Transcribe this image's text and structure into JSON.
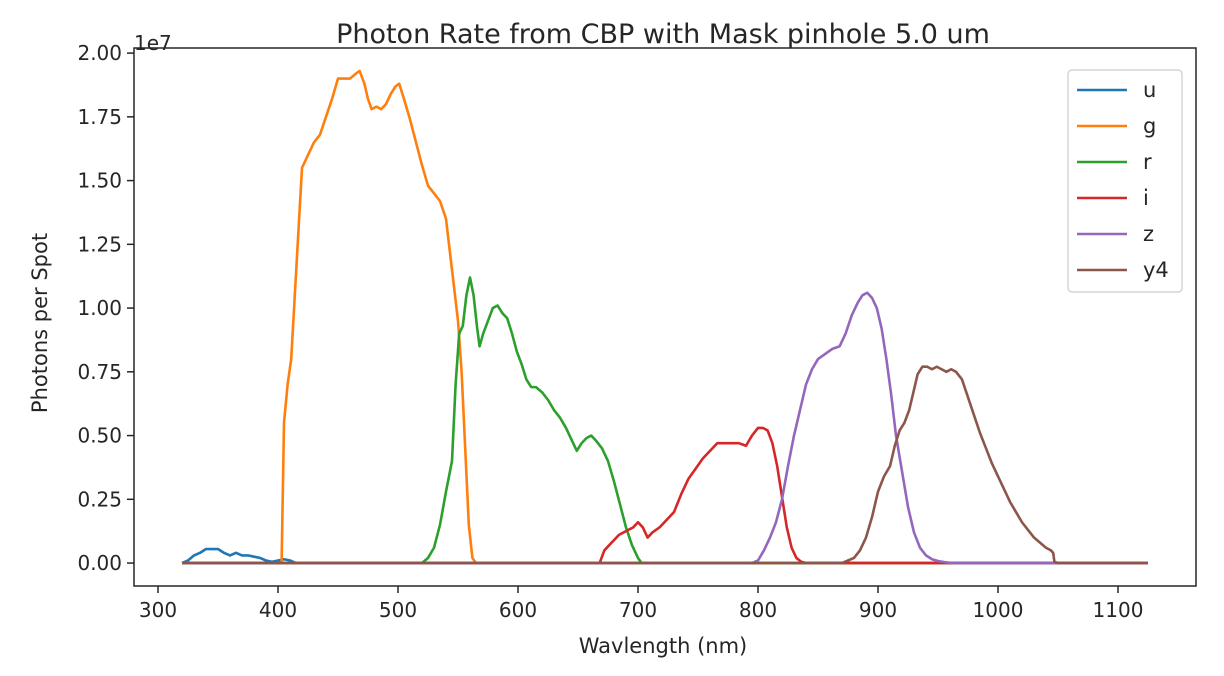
{
  "chart_data": {
    "type": "line",
    "title": "Photon Rate from CBP with Mask pinhole 5.0 um",
    "xlabel": "Wavlength (nm)",
    "ylabel": "Photons per Spot",
    "y_offset_label": "1e7",
    "y_scale": 10000000,
    "xlim": [
      280,
      1165
    ],
    "ylim": [
      -0.09,
      2.02
    ],
    "x_ticks": [
      300,
      400,
      500,
      600,
      700,
      800,
      900,
      1000,
      1100
    ],
    "x_tick_labels": [
      "300",
      "400",
      "500",
      "600",
      "700",
      "800",
      "900",
      "1000",
      "1100"
    ],
    "y_ticks": [
      0.0,
      0.25,
      0.5,
      0.75,
      1.0,
      1.25,
      1.5,
      1.75,
      2.0
    ],
    "y_tick_labels": [
      "0.00",
      "0.25",
      "0.50",
      "0.75",
      "1.00",
      "1.25",
      "1.50",
      "1.75",
      "2.00"
    ],
    "grid": false,
    "legend_position": "upper right",
    "series": [
      {
        "name": "u",
        "color": "#1f77b4",
        "points": [
          [
            320,
            0
          ],
          [
            325,
            0.01
          ],
          [
            330,
            0.03
          ],
          [
            335,
            0.04
          ],
          [
            340,
            0.055
          ],
          [
            345,
            0.055
          ],
          [
            350,
            0.055
          ],
          [
            355,
            0.04
          ],
          [
            360,
            0.03
          ],
          [
            365,
            0.04
          ],
          [
            370,
            0.03
          ],
          [
            375,
            0.03
          ],
          [
            380,
            0.025
          ],
          [
            385,
            0.02
          ],
          [
            390,
            0.01
          ],
          [
            395,
            0.005
          ],
          [
            400,
            0.01
          ],
          [
            405,
            0.015
          ],
          [
            410,
            0.01
          ],
          [
            415,
            0.0
          ],
          [
            1125,
            0
          ]
        ]
      },
      {
        "name": "g",
        "color": "#ff7f0e",
        "points": [
          [
            320,
            0
          ],
          [
            403,
            0
          ],
          [
            405,
            0.55
          ],
          [
            408,
            0.7
          ],
          [
            411,
            0.8
          ],
          [
            414,
            1.05
          ],
          [
            417,
            1.3
          ],
          [
            420,
            1.55
          ],
          [
            425,
            1.6
          ],
          [
            430,
            1.65
          ],
          [
            435,
            1.68
          ],
          [
            440,
            1.75
          ],
          [
            445,
            1.82
          ],
          [
            450,
            1.9
          ],
          [
            455,
            1.9
          ],
          [
            460,
            1.9
          ],
          [
            465,
            1.92
          ],
          [
            468,
            1.93
          ],
          [
            472,
            1.88
          ],
          [
            475,
            1.82
          ],
          [
            478,
            1.78
          ],
          [
            482,
            1.79
          ],
          [
            486,
            1.78
          ],
          [
            490,
            1.8
          ],
          [
            494,
            1.84
          ],
          [
            498,
            1.87
          ],
          [
            501,
            1.88
          ],
          [
            505,
            1.82
          ],
          [
            510,
            1.74
          ],
          [
            515,
            1.65
          ],
          [
            520,
            1.56
          ],
          [
            525,
            1.48
          ],
          [
            530,
            1.45
          ],
          [
            535,
            1.42
          ],
          [
            540,
            1.35
          ],
          [
            545,
            1.15
          ],
          [
            550,
            0.95
          ],
          [
            553,
            0.75
          ],
          [
            556,
            0.45
          ],
          [
            559,
            0.15
          ],
          [
            562,
            0.02
          ],
          [
            565,
            0
          ],
          [
            1125,
            0
          ]
        ]
      },
      {
        "name": "r",
        "color": "#2ca02c",
        "points": [
          [
            320,
            0
          ],
          [
            520,
            0
          ],
          [
            525,
            0.02
          ],
          [
            530,
            0.06
          ],
          [
            535,
            0.15
          ],
          [
            540,
            0.28
          ],
          [
            545,
            0.4
          ],
          [
            548,
            0.7
          ],
          [
            551,
            0.9
          ],
          [
            554,
            0.93
          ],
          [
            557,
            1.05
          ],
          [
            560,
            1.12
          ],
          [
            563,
            1.05
          ],
          [
            566,
            0.92
          ],
          [
            568,
            0.85
          ],
          [
            571,
            0.9
          ],
          [
            575,
            0.95
          ],
          [
            579,
            1.0
          ],
          [
            583,
            1.01
          ],
          [
            587,
            0.98
          ],
          [
            591,
            0.96
          ],
          [
            595,
            0.9
          ],
          [
            599,
            0.83
          ],
          [
            603,
            0.78
          ],
          [
            607,
            0.72
          ],
          [
            611,
            0.69
          ],
          [
            615,
            0.69
          ],
          [
            620,
            0.67
          ],
          [
            625,
            0.64
          ],
          [
            630,
            0.6
          ],
          [
            635,
            0.57
          ],
          [
            640,
            0.53
          ],
          [
            645,
            0.48
          ],
          [
            649,
            0.44
          ],
          [
            653,
            0.47
          ],
          [
            657,
            0.49
          ],
          [
            661,
            0.5
          ],
          [
            665,
            0.48
          ],
          [
            670,
            0.45
          ],
          [
            675,
            0.4
          ],
          [
            680,
            0.32
          ],
          [
            685,
            0.23
          ],
          [
            690,
            0.14
          ],
          [
            695,
            0.07
          ],
          [
            700,
            0.02
          ],
          [
            703,
            0
          ],
          [
            1125,
            0
          ]
        ]
      },
      {
        "name": "i",
        "color": "#d62728",
        "points": [
          [
            320,
            0
          ],
          [
            668,
            0
          ],
          [
            672,
            0.05
          ],
          [
            676,
            0.07
          ],
          [
            680,
            0.09
          ],
          [
            684,
            0.11
          ],
          [
            688,
            0.12
          ],
          [
            692,
            0.13
          ],
          [
            696,
            0.14
          ],
          [
            700,
            0.16
          ],
          [
            704,
            0.14
          ],
          [
            708,
            0.1
          ],
          [
            712,
            0.12
          ],
          [
            718,
            0.14
          ],
          [
            724,
            0.17
          ],
          [
            730,
            0.2
          ],
          [
            736,
            0.27
          ],
          [
            742,
            0.33
          ],
          [
            748,
            0.37
          ],
          [
            754,
            0.41
          ],
          [
            760,
            0.44
          ],
          [
            766,
            0.47
          ],
          [
            772,
            0.47
          ],
          [
            778,
            0.47
          ],
          [
            784,
            0.47
          ],
          [
            790,
            0.46
          ],
          [
            795,
            0.5
          ],
          [
            800,
            0.53
          ],
          [
            804,
            0.53
          ],
          [
            808,
            0.52
          ],
          [
            812,
            0.47
          ],
          [
            816,
            0.38
          ],
          [
            820,
            0.26
          ],
          [
            824,
            0.14
          ],
          [
            828,
            0.06
          ],
          [
            832,
            0.02
          ],
          [
            836,
            0.005
          ],
          [
            840,
            0
          ],
          [
            1125,
            0
          ]
        ]
      },
      {
        "name": "z",
        "color": "#9467bd",
        "points": [
          [
            320,
            0
          ],
          [
            795,
            0
          ],
          [
            800,
            0.01
          ],
          [
            805,
            0.05
          ],
          [
            810,
            0.1
          ],
          [
            815,
            0.16
          ],
          [
            820,
            0.25
          ],
          [
            825,
            0.38
          ],
          [
            830,
            0.5
          ],
          [
            835,
            0.6
          ],
          [
            840,
            0.7
          ],
          [
            845,
            0.76
          ],
          [
            850,
            0.8
          ],
          [
            856,
            0.82
          ],
          [
            862,
            0.84
          ],
          [
            868,
            0.85
          ],
          [
            873,
            0.9
          ],
          [
            878,
            0.97
          ],
          [
            883,
            1.02
          ],
          [
            887,
            1.05
          ],
          [
            891,
            1.06
          ],
          [
            895,
            1.04
          ],
          [
            899,
            1.0
          ],
          [
            903,
            0.92
          ],
          [
            907,
            0.8
          ],
          [
            911,
            0.66
          ],
          [
            915,
            0.5
          ],
          [
            920,
            0.36
          ],
          [
            925,
            0.22
          ],
          [
            930,
            0.12
          ],
          [
            935,
            0.06
          ],
          [
            940,
            0.03
          ],
          [
            945,
            0.015
          ],
          [
            950,
            0.008
          ],
          [
            955,
            0.004
          ],
          [
            960,
            0.001
          ],
          [
            965,
            0
          ],
          [
            1125,
            0
          ]
        ]
      },
      {
        "name": "y4",
        "color": "#8c564b",
        "points": [
          [
            320,
            0
          ],
          [
            870,
            0
          ],
          [
            875,
            0.01
          ],
          [
            880,
            0.02
          ],
          [
            885,
            0.05
          ],
          [
            890,
            0.1
          ],
          [
            895,
            0.18
          ],
          [
            900,
            0.28
          ],
          [
            905,
            0.34
          ],
          [
            910,
            0.38
          ],
          [
            914,
            0.46
          ],
          [
            918,
            0.52
          ],
          [
            922,
            0.55
          ],
          [
            926,
            0.6
          ],
          [
            930,
            0.68
          ],
          [
            933,
            0.74
          ],
          [
            937,
            0.77
          ],
          [
            941,
            0.77
          ],
          [
            945,
            0.76
          ],
          [
            949,
            0.77
          ],
          [
            953,
            0.76
          ],
          [
            957,
            0.75
          ],
          [
            961,
            0.76
          ],
          [
            965,
            0.75
          ],
          [
            970,
            0.72
          ],
          [
            975,
            0.65
          ],
          [
            980,
            0.58
          ],
          [
            985,
            0.51
          ],
          [
            990,
            0.45
          ],
          [
            995,
            0.39
          ],
          [
            1000,
            0.34
          ],
          [
            1005,
            0.29
          ],
          [
            1010,
            0.24
          ],
          [
            1015,
            0.2
          ],
          [
            1020,
            0.16
          ],
          [
            1025,
            0.13
          ],
          [
            1030,
            0.1
          ],
          [
            1035,
            0.08
          ],
          [
            1040,
            0.06
          ],
          [
            1044,
            0.05
          ],
          [
            1046,
            0.04
          ],
          [
            1047,
            0.005
          ],
          [
            1050,
            0
          ],
          [
            1125,
            0
          ]
        ]
      }
    ]
  }
}
